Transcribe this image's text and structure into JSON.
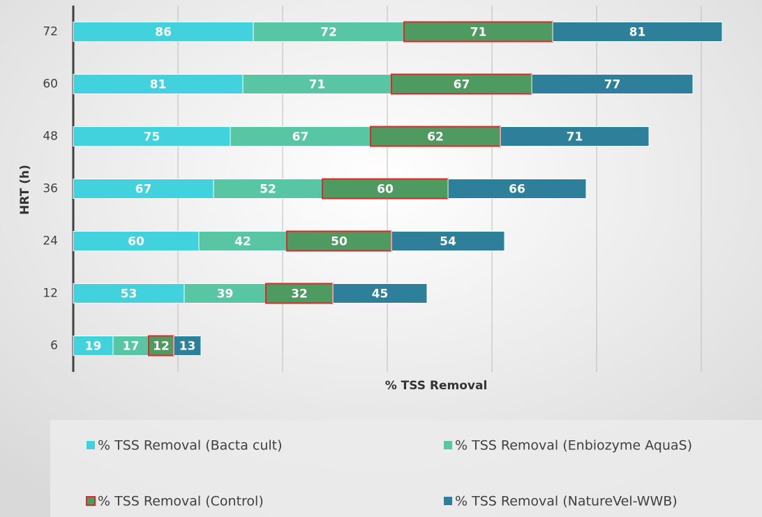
{
  "chart_data": {
    "type": "stacked-bar-horizontal",
    "x_label": "% TSS Removal",
    "y_label": "HRT (h)",
    "categories": [
      "6",
      "12",
      "24",
      "36",
      "48",
      "60",
      "72"
    ],
    "series": [
      {
        "name": "% TSS Removal (Bacta cult)",
        "color": "#42d2de",
        "values": [
          19,
          53,
          60,
          67,
          75,
          81,
          86
        ]
      },
      {
        "name": "% TSS Removal (Enbiozyme AquaS)",
        "color": "#58c6a2",
        "values": [
          17,
          39,
          42,
          52,
          67,
          71,
          72
        ]
      },
      {
        "name": "% TSS Removal (Control)",
        "color": "#4f9a60",
        "edgecolor": "#e0282a",
        "values": [
          12,
          32,
          50,
          60,
          62,
          67,
          71
        ]
      },
      {
        "name": "% TSS Removal (NatureVel-WWB)",
        "color": "#2e7f99",
        "values": [
          13,
          45,
          54,
          66,
          71,
          77,
          81
        ]
      }
    ],
    "xlim": [
      0,
      320
    ],
    "xticks": [
      0,
      50,
      100,
      150,
      200,
      250,
      300
    ],
    "grid": true,
    "legend": "bottom"
  }
}
